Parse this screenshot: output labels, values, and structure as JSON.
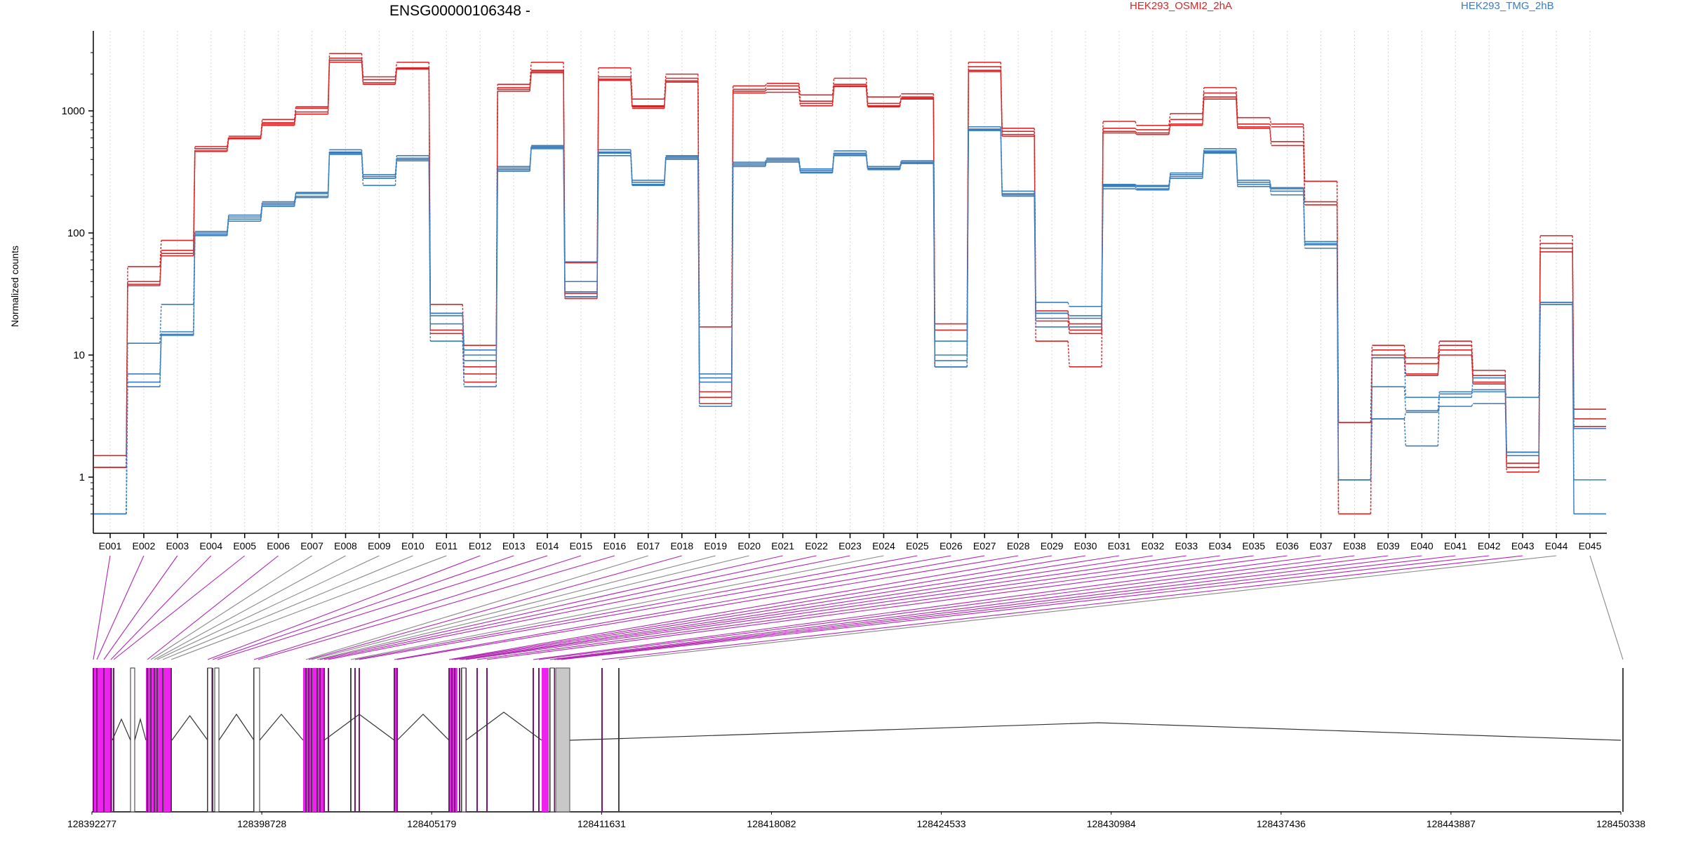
{
  "chart_data": {
    "type": "line",
    "title": "ENSG00000106348 -",
    "ylabel": "Normalized counts",
    "yscale": "log",
    "ylim": [
      0.5,
      3500
    ],
    "yticks": [
      1,
      10,
      100,
      1000
    ],
    "yticklabels": [
      "1",
      "10",
      "100",
      "1000"
    ],
    "grid": "vertical dotted",
    "legend": "top",
    "colors": {
      "HEK293_OSMI2_2hA": "#d62728",
      "HEK293_TMG_2hB": "#3a7dbd"
    },
    "categories": [
      "E001",
      "E002",
      "E003",
      "E004",
      "E005",
      "E006",
      "E007",
      "E008",
      "E009",
      "E010",
      "E011",
      "E012",
      "E013",
      "E014",
      "E015",
      "E016",
      "E017",
      "E018",
      "E019",
      "E020",
      "E021",
      "E022",
      "E023",
      "E024",
      "E025",
      "E026",
      "E027",
      "E028",
      "E029",
      "E030",
      "E031",
      "E032",
      "E033",
      "E034",
      "E035",
      "E036",
      "E037",
      "E038",
      "E039",
      "E040",
      "E041",
      "E042",
      "E043",
      "E044",
      "E045"
    ],
    "series": [
      {
        "name": "HEK293_OSMI2_2hA",
        "values": [
          1.5,
          53,
          87,
          510,
          620,
          850,
          1080,
          2950,
          1900,
          2500,
          26,
          12,
          1650,
          2500,
          57,
          2250,
          1250,
          2000,
          17,
          1600,
          1680,
          1350,
          1850,
          1300,
          1380,
          18,
          2500,
          720,
          23,
          18,
          820,
          760,
          950,
          1550,
          880,
          780,
          265,
          2.8,
          12,
          9.5,
          13,
          7.5,
          1.6,
          95,
          3.6
        ]
      },
      {
        "name": "HEK293_OSMI2_2hA",
        "values": [
          1.2,
          40,
          72,
          490,
          600,
          800,
          1050,
          2700,
          1800,
          2250,
          22,
          8,
          1550,
          2150,
          32,
          1900,
          1100,
          1850,
          5,
          1500,
          1600,
          1200,
          1650,
          1150,
          1300,
          16,
          2300,
          680,
          22,
          16,
          720,
          700,
          850,
          1400,
          780,
          740,
          170,
          2.8,
          11,
          8.5,
          12,
          6.8,
          1.3,
          82,
          3
        ]
      },
      {
        "name": "HEK293_OSMI2_2hA",
        "values": [
          1.2,
          37,
          65,
          465,
          590,
          760,
          940,
          2500,
          1650,
          2200,
          15,
          6,
          1450,
          2050,
          29,
          1780,
          1050,
          1720,
          4.5,
          1400,
          1420,
          1100,
          1580,
          1080,
          1250,
          8,
          2100,
          620,
          13,
          8,
          660,
          640,
          760,
          1250,
          720,
          520,
          265,
          0.5,
          9.5,
          6.8,
          10,
          5.8,
          1.1,
          70,
          2.5
        ]
      },
      {
        "name": "HEK293_OSMI2_2hA",
        "values": [
          1.2,
          38,
          68,
          470,
          595,
          780,
          980,
          2600,
          1700,
          2230,
          16,
          7,
          1500,
          2100,
          30,
          1820,
          1080,
          1760,
          4,
          1450,
          1500,
          1150,
          1600,
          1100,
          1270,
          8,
          2150,
          640,
          19,
          15,
          680,
          660,
          780,
          1300,
          740,
          560,
          180,
          0.5,
          10,
          7,
          11,
          6,
          1.2,
          75,
          2.6
        ]
      },
      {
        "name": "HEK293_TMG_2hB",
        "values": [
          0.5,
          12.5,
          26,
          103,
          140,
          180,
          215,
          480,
          300,
          430,
          22,
          11,
          350,
          520,
          58,
          480,
          270,
          430,
          7,
          380,
          410,
          335,
          470,
          350,
          390,
          13,
          740,
          220,
          27,
          25,
          250,
          245,
          310,
          490,
          270,
          235,
          85,
          0.95,
          5.5,
          3.5,
          5,
          5.2,
          4.5,
          27,
          0.95
        ]
      },
      {
        "name": "HEK293_TMG_2hB",
        "values": [
          0.5,
          7,
          15.5,
          100,
          135,
          175,
          210,
          450,
          290,
          410,
          21,
          10,
          340,
          500,
          40,
          460,
          260,
          420,
          6.5,
          370,
          400,
          325,
          450,
          340,
          380,
          10,
          700,
          210,
          22,
          21,
          245,
          240,
          300,
          470,
          260,
          230,
          82,
          0.95,
          3,
          3.4,
          3.8,
          4,
          1.6,
          26,
          2.5
        ]
      },
      {
        "name": "HEK293_TMG_2hB",
        "values": [
          0.5,
          5.5,
          14.5,
          95,
          125,
          165,
          195,
          440,
          245,
          390,
          13,
          5.5,
          320,
          490,
          30,
          430,
          245,
          400,
          3.8,
          350,
          380,
          310,
          430,
          330,
          370,
          8,
          690,
          200,
          17,
          17,
          230,
          225,
          280,
          450,
          240,
          205,
          75,
          0.95,
          3,
          1.8,
          4.8,
          5,
          1.5,
          27,
          0.5
        ]
      },
      {
        "name": "HEK293_TMG_2hB",
        "values": [
          0.5,
          6,
          14.8,
          97,
          130,
          170,
          200,
          460,
          280,
          400,
          18,
          9,
          330,
          510,
          33,
          450,
          250,
          410,
          6,
          360,
          390,
          315,
          440,
          335,
          375,
          9,
          710,
          205,
          20,
          20,
          240,
          230,
          290,
          460,
          250,
          220,
          80,
          0.95,
          9.5,
          4.5,
          4.5,
          6.5,
          1.6,
          26,
          0.5
        ]
      }
    ],
    "annotation": {
      "genomic_ticks": [
        "128392277",
        "128398728",
        "128405179",
        "128411631",
        "128418082",
        "128424533",
        "128430984",
        "128437436",
        "128443887",
        "128450338"
      ]
    }
  }
}
